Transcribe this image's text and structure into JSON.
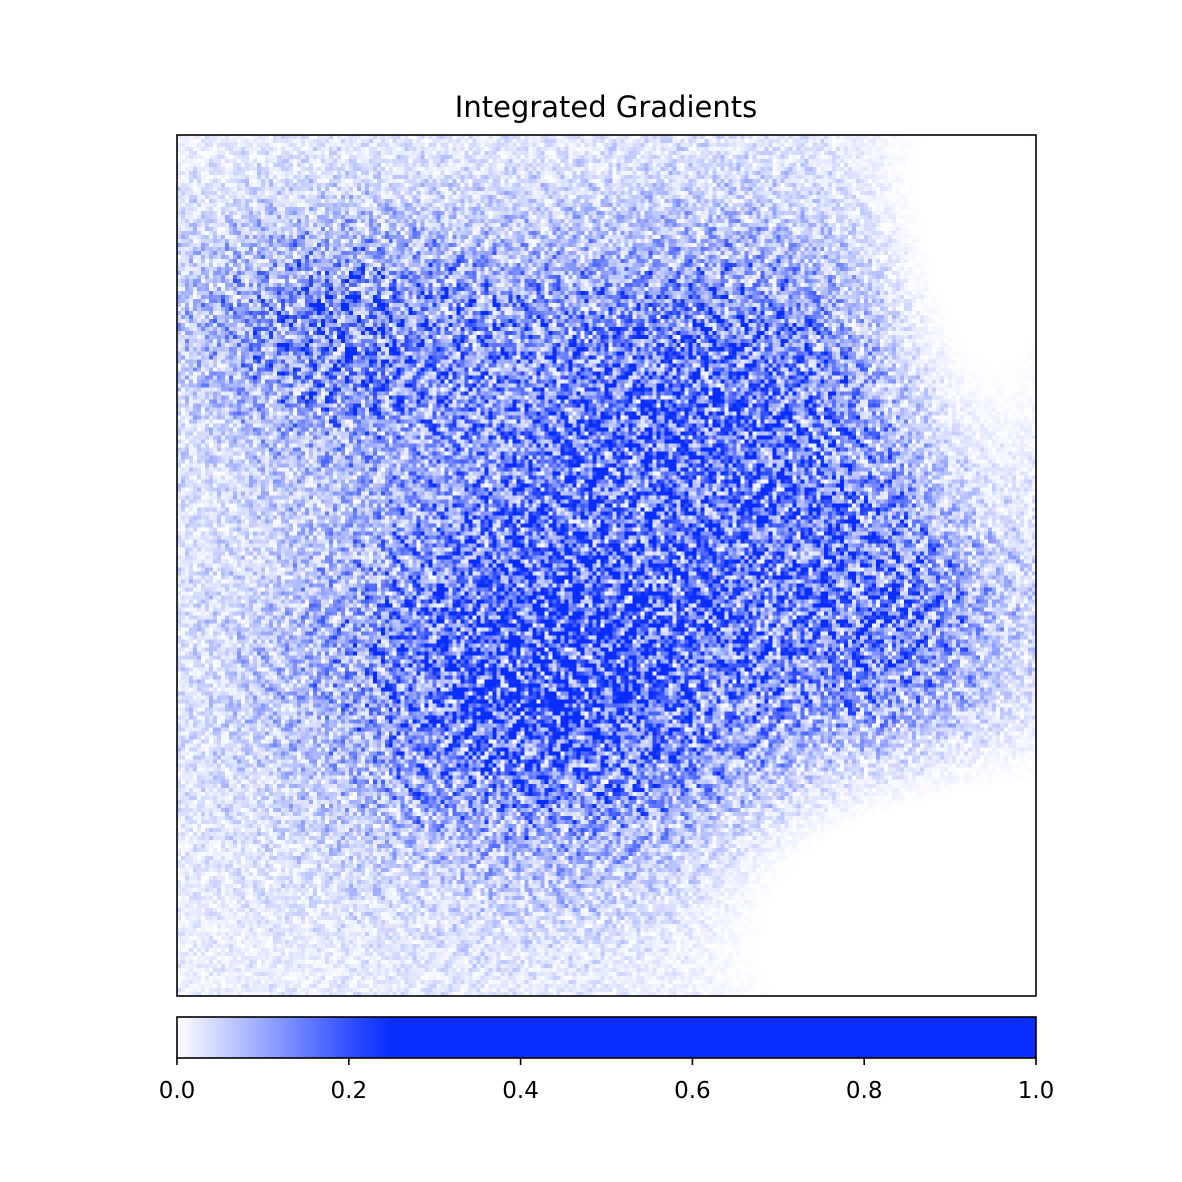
{
  "chart_data": {
    "type": "heatmap",
    "title": "Integrated Gradients",
    "xlabel": "",
    "ylabel": "",
    "grid": false,
    "axis_ticks_shown": false,
    "description_of_values": "attribution map of pixel importances, normalized 0 to 1, clipped bright at about 0.25",
    "colormap": {
      "name": "white-to-blue",
      "low_color": "#ffffff",
      "high_color": "#0a2dff",
      "saturation_value": 0.24
    },
    "value_range": [
      0.0,
      1.0
    ],
    "colorbar": {
      "orientation": "horizontal",
      "placement": "bottom",
      "range": [
        0.0,
        1.0
      ],
      "ticks": [
        0.0,
        0.2,
        0.4,
        0.6,
        0.8,
        1.0
      ],
      "tick_labels": [
        "0.0",
        "0.2",
        "0.4",
        "0.6",
        "0.8",
        "1.0"
      ]
    }
  }
}
